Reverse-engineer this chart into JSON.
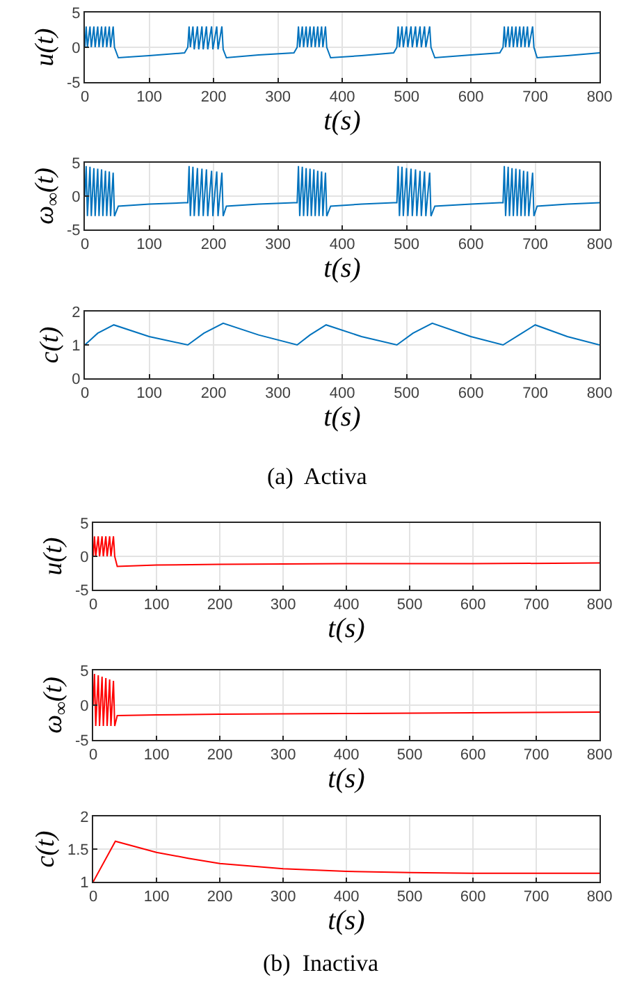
{
  "chart_data": [
    {
      "type": "line",
      "xlabel": "t(s)",
      "ylabel": "u(t)",
      "xlim": [
        0,
        800
      ],
      "ylim": [
        -5,
        5
      ],
      "xticks": [
        0,
        100,
        200,
        300,
        400,
        500,
        600,
        700,
        800
      ],
      "yticks": [
        -5,
        0,
        5
      ],
      "grid": true,
      "x": [
        0,
        2,
        4,
        8,
        10,
        14,
        16,
        20,
        22,
        26,
        28,
        32,
        34,
        38,
        40,
        44,
        46,
        52,
        100,
        155,
        160,
        162,
        164,
        168,
        170,
        175,
        177,
        182,
        184,
        189,
        191,
        197,
        199,
        205,
        207,
        213,
        215,
        220,
        270,
        325,
        330,
        332,
        334,
        338,
        340,
        344,
        346,
        350,
        352,
        356,
        358,
        362,
        364,
        368,
        370,
        374,
        376,
        382,
        430,
        480,
        485,
        487,
        489,
        493,
        495,
        500,
        502,
        507,
        509,
        514,
        516,
        521,
        523,
        528,
        530,
        536,
        538,
        544,
        600,
        645,
        650,
        652,
        654,
        658,
        660,
        664,
        666,
        670,
        672,
        676,
        678,
        682,
        684,
        688,
        690,
        696,
        698,
        703,
        750,
        800
      ],
      "series": [
        {
          "color": "#0072bd",
          "values": [
            0,
            3,
            0,
            3,
            0,
            3,
            0,
            3,
            0,
            3,
            0,
            3,
            0,
            3,
            0,
            3,
            0,
            -1.5,
            -1.2,
            -0.8,
            0,
            3,
            0,
            3,
            -0.3,
            3,
            -0.3,
            3,
            -0.3,
            3,
            -0.3,
            3,
            -0.3,
            3,
            -0.3,
            3,
            -0.3,
            -1.5,
            -1.1,
            -0.8,
            0,
            3,
            0,
            3,
            0,
            3,
            0,
            3,
            0,
            3,
            0,
            3,
            0,
            3,
            0,
            3,
            0,
            -1.5,
            -1.2,
            -0.8,
            0,
            3,
            0,
            3,
            0,
            3,
            0,
            3,
            0,
            3,
            0,
            3,
            0,
            3,
            0,
            3,
            0,
            -1.5,
            -1.1,
            -0.8,
            0,
            3,
            0,
            3,
            0,
            3,
            0,
            3,
            0,
            3,
            0,
            3,
            0,
            3,
            0,
            3,
            0,
            -1.5,
            -1.2,
            -0.8
          ]
        }
      ]
    },
    {
      "type": "line",
      "xlabel": "t(s)",
      "ylabel": "ω$_{∞}$(t)",
      "xlim": [
        0,
        800
      ],
      "ylim": [
        -5,
        5
      ],
      "xticks": [
        0,
        100,
        200,
        300,
        400,
        500,
        600,
        700,
        800
      ],
      "yticks": [
        -5,
        0,
        5
      ],
      "grid": true,
      "x": [
        0,
        2,
        4,
        8,
        10,
        14,
        16,
        20,
        22,
        26,
        28,
        32,
        34,
        38,
        40,
        44,
        46,
        52,
        100,
        155,
        160,
        162,
        164,
        168,
        170,
        175,
        177,
        182,
        184,
        189,
        191,
        197,
        199,
        205,
        207,
        213,
        215,
        220,
        270,
        325,
        330,
        332,
        334,
        338,
        340,
        344,
        346,
        350,
        352,
        356,
        358,
        362,
        364,
        368,
        370,
        374,
        376,
        382,
        430,
        480,
        485,
        487,
        489,
        493,
        495,
        500,
        502,
        507,
        509,
        514,
        516,
        521,
        523,
        528,
        530,
        536,
        538,
        544,
        600,
        645,
        650,
        652,
        654,
        658,
        660,
        664,
        666,
        670,
        672,
        676,
        678,
        682,
        684,
        688,
        690,
        696,
        698,
        703,
        750,
        800
      ],
      "series": [
        {
          "color": "#0072bd",
          "values": [
            0,
            4.5,
            -3,
            4.4,
            -3,
            4.2,
            -3,
            4.1,
            -3,
            4.0,
            -3,
            3.8,
            -3,
            3.7,
            -3,
            3.5,
            -3,
            -1.5,
            -1.2,
            -1.0,
            -1,
            4.5,
            -3,
            4.4,
            -3,
            4.2,
            -3,
            4.1,
            -3,
            4.0,
            -3,
            3.8,
            -3,
            3.7,
            -3,
            3.5,
            -3,
            -1.5,
            -1.2,
            -1.0,
            -1,
            4.5,
            -3,
            4.4,
            -3,
            4.2,
            -3,
            4.1,
            -3,
            4.0,
            -3,
            3.8,
            -3,
            3.7,
            -3,
            3.5,
            -3,
            -1.5,
            -1.2,
            -1.0,
            -1,
            4.5,
            -3,
            4.4,
            -3,
            4.2,
            -3,
            4.1,
            -3,
            4.0,
            -3,
            3.8,
            -3,
            3.7,
            -3,
            3.5,
            -3,
            -1.5,
            -1.2,
            -1.0,
            -1,
            4.5,
            -3,
            4.4,
            -3,
            4.2,
            -3,
            4.1,
            -3,
            4.0,
            -3,
            3.8,
            -3,
            3.7,
            -3,
            3.5,
            -3,
            -1.5,
            -1.2,
            -1.0
          ]
        }
      ]
    },
    {
      "type": "line",
      "xlabel": "t(s)",
      "ylabel": "c(t)",
      "xlim": [
        0,
        800
      ],
      "ylim": [
        0,
        2
      ],
      "xticks": [
        0,
        100,
        200,
        300,
        400,
        500,
        600,
        700,
        800
      ],
      "yticks": [
        0,
        1,
        2
      ],
      "grid": true,
      "annotations": [
        "(a)  Activa"
      ],
      "x": [
        0,
        20,
        45,
        100,
        160,
        185,
        215,
        270,
        330,
        350,
        375,
        430,
        485,
        510,
        540,
        600,
        650,
        675,
        700,
        750,
        800
      ],
      "series": [
        {
          "color": "#0072bd",
          "values": [
            1.0,
            1.35,
            1.6,
            1.25,
            1.0,
            1.35,
            1.65,
            1.3,
            1.0,
            1.3,
            1.6,
            1.25,
            1.0,
            1.35,
            1.65,
            1.25,
            1.0,
            1.3,
            1.6,
            1.25,
            1.0
          ]
        }
      ]
    },
    {
      "type": "line",
      "xlabel": "t(s)",
      "ylabel": "u(t)",
      "xlim": [
        0,
        800
      ],
      "ylim": [
        -5,
        5
      ],
      "xticks": [
        0,
        100,
        200,
        300,
        400,
        500,
        600,
        700,
        800
      ],
      "yticks": [
        -5,
        0,
        5
      ],
      "grid": true,
      "x": [
        0,
        2,
        4,
        8,
        10,
        14,
        16,
        20,
        22,
        26,
        28,
        32,
        34,
        38,
        100,
        200,
        400,
        600,
        800
      ],
      "series": [
        {
          "color": "#ff0000",
          "values": [
            0,
            3,
            0,
            3,
            0,
            3,
            0,
            3,
            0,
            3,
            0,
            3,
            0,
            -1.5,
            -1.3,
            -1.2,
            -1.1,
            -1.1,
            -1.0
          ]
        }
      ]
    },
    {
      "type": "line",
      "xlabel": "t(s)",
      "ylabel": "ω$_{∞}$(t)",
      "xlim": [
        0,
        800
      ],
      "ylim": [
        -5,
        5
      ],
      "xticks": [
        0,
        100,
        200,
        300,
        400,
        500,
        600,
        700,
        800
      ],
      "yticks": [
        -5,
        0,
        5
      ],
      "grid": true,
      "x": [
        0,
        2,
        4,
        8,
        10,
        14,
        16,
        20,
        22,
        26,
        28,
        32,
        34,
        38,
        100,
        200,
        400,
        600,
        800
      ],
      "series": [
        {
          "color": "#ff0000",
          "values": [
            0,
            4.5,
            -3,
            4.3,
            -3,
            4.1,
            -3,
            3.9,
            -3,
            3.7,
            -3,
            3.5,
            -3,
            -1.5,
            -1.4,
            -1.3,
            -1.2,
            -1.1,
            -1.0
          ]
        }
      ]
    },
    {
      "type": "line",
      "xlabel": "t(s)",
      "ylabel": "c(t)",
      "xlim": [
        0,
        800
      ],
      "ylim": [
        1,
        2
      ],
      "xticks": [
        0,
        100,
        200,
        300,
        400,
        500,
        600,
        700,
        800
      ],
      "yticks": [
        1,
        1.5,
        2
      ],
      "grid": true,
      "annotations": [
        "(b)  Inactiva"
      ],
      "x": [
        0,
        35,
        100,
        150,
        200,
        300,
        400,
        500,
        600,
        700,
        800
      ],
      "series": [
        {
          "color": "#ff0000",
          "values": [
            1.0,
            1.62,
            1.45,
            1.36,
            1.28,
            1.2,
            1.16,
            1.14,
            1.13,
            1.13,
            1.13
          ]
        }
      ]
    }
  ]
}
